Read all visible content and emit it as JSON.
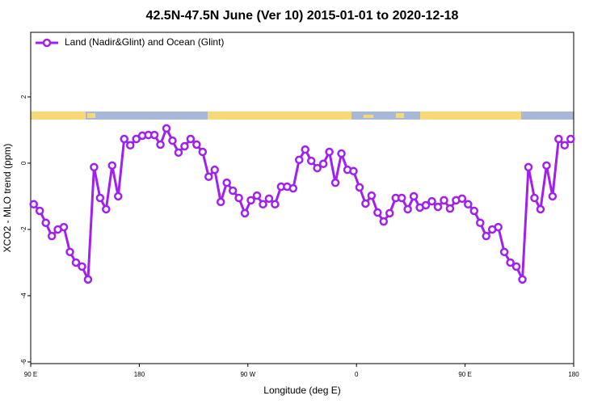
{
  "chart_data": {
    "type": "line",
    "title": "42.5N-47.5N June (Ver 10)   2015-01-01 to 2020-12-18",
    "x_label": "Longitude (deg E)",
    "y_label": "XCO2 - MLO trend (ppm)",
    "legend": "top-left",
    "xlim": [
      90,
      540
    ],
    "xticks": [
      {
        "value": 90,
        "label": "90 E"
      },
      180,
      {
        "value": 270,
        "label": "90 W"
      },
      {
        "value": 360,
        "label": "0"
      },
      {
        "value": 450,
        "label": "90 E"
      },
      {
        "value": 540,
        "label": "180"
      }
    ],
    "ylim": [
      -6.05,
      3.95
    ],
    "yticks": [
      -6,
      -4,
      -2,
      0,
      2
    ],
    "x": [
      92.5,
      97.5,
      102.5,
      107.5,
      112.5,
      117.5,
      122.5,
      127.5,
      132.5,
      137.5,
      142.5,
      147.5,
      152.5,
      157.5,
      162.5,
      167.5,
      172.5,
      177.5,
      182.5,
      187.5,
      192.5,
      197.5,
      202.5,
      207.5,
      212.5,
      217.5,
      222.5,
      227.5,
      232.5,
      237.5,
      242.5,
      247.5,
      252.5,
      257.5,
      262.5,
      267.5,
      272.5,
      277.5,
      282.5,
      287.5,
      292.5,
      297.5,
      302.5,
      307.5,
      312.5,
      317.5,
      322.5,
      327.5,
      332.5,
      337.5,
      342.5,
      347.5,
      352.5,
      357.5,
      362.5,
      367.5,
      372.5,
      377.5,
      382.5,
      387.5,
      392.5,
      397.5,
      402.5,
      407.5,
      412.5,
      417.5,
      422.5,
      427.5,
      432.5,
      437.5,
      442.5,
      447.5,
      452.5,
      457.5,
      462.5,
      467.5,
      472.5,
      477.5,
      482.5,
      487.5,
      492.5,
      497.5,
      502.5,
      507.5,
      512.5,
      517.5,
      522.5,
      527.5,
      532.5,
      537.5
    ],
    "series": [
      {
        "name": "Land (Nadir&Glint) and Ocean (Glint)",
        "color": "#a020f0",
        "values": [
          -1.24,
          -1.44,
          -1.8,
          -2.2,
          -2.0,
          -1.93,
          -2.68,
          -3.0,
          -3.12,
          -3.51,
          -0.12,
          -1.05,
          -1.39,
          -0.07,
          -1.0,
          0.73,
          0.54,
          0.73,
          0.83,
          0.85,
          0.85,
          0.56,
          1.05,
          0.68,
          0.32,
          0.51,
          0.73,
          0.56,
          0.34,
          -0.41,
          -0.2,
          -1.17,
          -0.59,
          -0.83,
          -1.05,
          -1.51,
          -1.12,
          -0.98,
          -1.24,
          -1.07,
          -1.24,
          -0.71,
          -0.71,
          -0.76,
          0.1,
          0.41,
          0.07,
          -0.15,
          -0.02,
          0.34,
          -0.59,
          0.29,
          -0.2,
          -0.24,
          -0.73,
          -1.22,
          -0.98,
          -1.49,
          -1.76,
          -1.51,
          -1.05,
          -1.05,
          -1.39,
          -1.0,
          -1.34,
          -1.27,
          -1.15,
          -1.32,
          -1.12,
          -1.37,
          -1.12,
          -1.07,
          -1.24,
          -1.44,
          -1.8,
          -2.2,
          -2.0,
          -1.93,
          -2.68,
          -3.0,
          -3.12,
          -3.51,
          -0.12,
          -1.05,
          -1.39,
          -0.07,
          -1.0,
          0.73,
          0.54,
          0.73
        ]
      }
    ]
  }
}
